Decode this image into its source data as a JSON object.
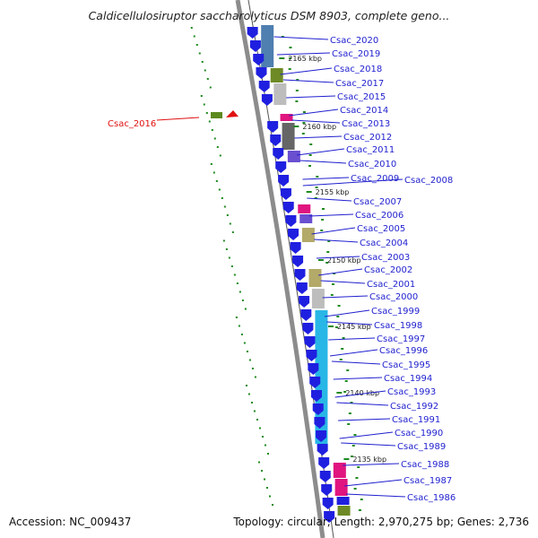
{
  "title": "Caldicellulosiruptor saccharolyticus DSM 8903, complete geno...",
  "footer": {
    "accession": "Accession: NC_009437",
    "topology": "Topology: circular; Length: 2,970,275 bp; Genes: 2,736"
  },
  "kbp_marks": [
    "2165 kbp",
    "2160 kbp",
    "2155 kbp",
    "2150 kbp",
    "2145 kbp",
    "2140 kbp",
    "2135 kbp"
  ],
  "genes": [
    {
      "name": "Csac_2020",
      "color": "#1f1fcf"
    },
    {
      "name": "Csac_2019",
      "color": "#1f1fcf"
    },
    {
      "name": "Csac_2018",
      "color": "#1f1fcf"
    },
    {
      "name": "Csac_2017",
      "color": "#1f1fcf"
    },
    {
      "name": "Csac_2015",
      "color": "#1f1fcf"
    },
    {
      "name": "Csac_2014",
      "color": "#1f1fcf"
    },
    {
      "name": "Csac_2013",
      "color": "#1f1fcf"
    },
    {
      "name": "Csac_2012",
      "color": "#1f1fcf"
    },
    {
      "name": "Csac_2011",
      "color": "#1f1fcf"
    },
    {
      "name": "Csac_2010",
      "color": "#1f1fcf"
    },
    {
      "name": "Csac_2009",
      "color": "#1f1fcf"
    },
    {
      "name": "Csac_2008",
      "color": "#1f1fcf"
    },
    {
      "name": "Csac_2007",
      "color": "#1f1fcf"
    },
    {
      "name": "Csac_2006",
      "color": "#1f1fcf"
    },
    {
      "name": "Csac_2005",
      "color": "#1f1fcf"
    },
    {
      "name": "Csac_2004",
      "color": "#1f1fcf"
    },
    {
      "name": "Csac_2003",
      "color": "#1f1fcf"
    },
    {
      "name": "Csac_2002",
      "color": "#1f1fcf"
    },
    {
      "name": "Csac_2001",
      "color": "#1f1fcf"
    },
    {
      "name": "Csac_2000",
      "color": "#1f1fcf"
    },
    {
      "name": "Csac_1999",
      "color": "#1f1fcf"
    },
    {
      "name": "Csac_1998",
      "color": "#1f1fcf"
    },
    {
      "name": "Csac_1997",
      "color": "#1f1fcf"
    },
    {
      "name": "Csac_1996",
      "color": "#1f1fcf"
    },
    {
      "name": "Csac_1995",
      "color": "#1f1fcf"
    },
    {
      "name": "Csac_1994",
      "color": "#1f1fcf"
    },
    {
      "name": "Csac_1993",
      "color": "#1f1fcf"
    },
    {
      "name": "Csac_1992",
      "color": "#1f1fcf"
    },
    {
      "name": "Csac_1991",
      "color": "#1f1fcf"
    },
    {
      "name": "Csac_1990",
      "color": "#1f1fcf"
    },
    {
      "name": "Csac_1989",
      "color": "#1f1fcf"
    },
    {
      "name": "Csac_1988",
      "color": "#1f1fcf"
    },
    {
      "name": "Csac_1987",
      "color": "#1f1fcf"
    },
    {
      "name": "Csac_1986",
      "color": "#1f1fcf"
    },
    {
      "name": "Csac_2016",
      "color": "#e01010"
    }
  ],
  "colors": {
    "gene_arrow": "#1f1fe0",
    "backbone": "#8c8c8c",
    "gc_dots": "#1e8a1e",
    "label_blue": "#1f1fcf",
    "label_red": "#e01010"
  }
}
